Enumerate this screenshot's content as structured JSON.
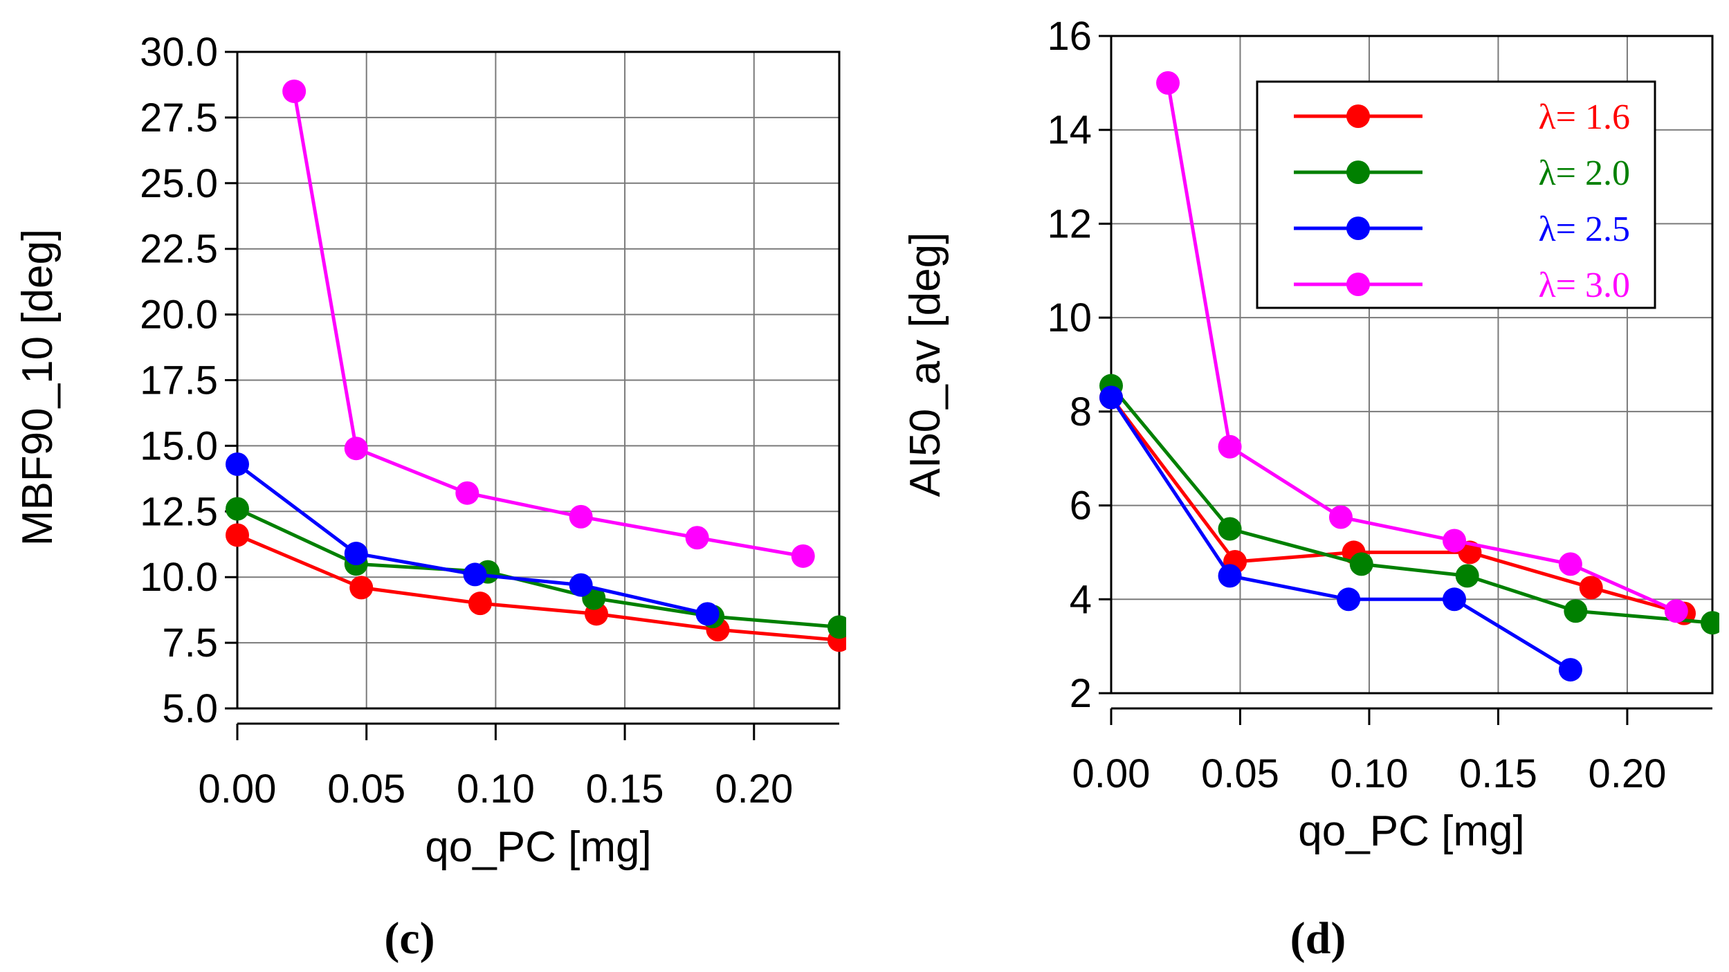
{
  "chart_data": [
    {
      "type": "line",
      "panel_label": "(c)",
      "xlabel": "qo_PC [mg]",
      "ylabel": "MBF90_10 [deg]",
      "xlim": [
        0.0,
        0.233
      ],
      "ylim": [
        5.0,
        30.0
      ],
      "xticks": [
        "0.00",
        "0.05",
        "0.10",
        "0.15",
        "0.20"
      ],
      "xtick_values": [
        0.0,
        0.05,
        0.1,
        0.15,
        0.2
      ],
      "yticks": [
        "5.0",
        "7.5",
        "10.0",
        "12.5",
        "15.0",
        "17.5",
        "20.0",
        "22.5",
        "25.0",
        "27.5",
        "30.0"
      ],
      "ytick_values": [
        5.0,
        7.5,
        10.0,
        12.5,
        15.0,
        17.5,
        20.0,
        22.5,
        25.0,
        27.5,
        30.0
      ],
      "grid": true,
      "series": [
        {
          "name": "λ = 1.6",
          "color": "#ff0000",
          "x": [
            0.0,
            0.048,
            0.094,
            0.139,
            0.186,
            0.233
          ],
          "y": [
            11.6,
            9.6,
            9.0,
            8.6,
            8.0,
            7.6
          ]
        },
        {
          "name": "λ = 2.0",
          "color": "#008000",
          "x": [
            0.0,
            0.046,
            0.097,
            0.138,
            0.184,
            0.233
          ],
          "y": [
            12.6,
            10.5,
            10.2,
            9.2,
            8.5,
            8.1
          ]
        },
        {
          "name": "λ = 2.5",
          "color": "#0000ff",
          "x": [
            0.0,
            0.046,
            0.092,
            0.133,
            0.182
          ],
          "y": [
            14.3,
            10.9,
            10.1,
            9.7,
            8.6
          ]
        },
        {
          "name": "λ = 3.0",
          "color": "#ff00ff",
          "x": [
            0.022,
            0.046,
            0.089,
            0.133,
            0.178,
            0.219
          ],
          "y": [
            28.5,
            14.9,
            13.2,
            12.3,
            11.5,
            10.8
          ]
        }
      ]
    },
    {
      "type": "line",
      "panel_label": "(d)",
      "xlabel": "qo_PC [mg]",
      "ylabel": "AI50_av [deg]",
      "xlim": [
        0.0,
        0.233
      ],
      "ylim": [
        2.0,
        16.0
      ],
      "xticks": [
        "0.00",
        "0.05",
        "0.10",
        "0.15",
        "0.20"
      ],
      "xtick_values": [
        0.0,
        0.05,
        0.1,
        0.15,
        0.2
      ],
      "yticks": [
        "2",
        "4",
        "6",
        "8",
        "10",
        "12",
        "14",
        "16"
      ],
      "ytick_values": [
        2,
        4,
        6,
        8,
        10,
        12,
        14,
        16
      ],
      "grid": true,
      "legend": {
        "position": "top-right",
        "entries": [
          "λ= 1.6",
          "λ= 2.0",
          "λ= 2.5",
          "λ= 3.0"
        ]
      },
      "series": [
        {
          "name": "λ= 1.6",
          "color": "#ff0000",
          "x": [
            0.0,
            0.048,
            0.094,
            0.139,
            0.186,
            0.222
          ],
          "y": [
            8.3,
            4.8,
            5.0,
            5.0,
            4.25,
            3.7
          ]
        },
        {
          "name": "λ= 2.0",
          "color": "#008000",
          "x": [
            0.0,
            0.046,
            0.097,
            0.138,
            0.18,
            0.233
          ],
          "y": [
            8.55,
            5.5,
            4.75,
            4.5,
            3.75,
            3.5
          ]
        },
        {
          "name": "λ= 2.5",
          "color": "#0000ff",
          "x": [
            0.0,
            0.046,
            0.092,
            0.133,
            0.178
          ],
          "y": [
            8.3,
            4.5,
            4.0,
            4.0,
            2.5
          ]
        },
        {
          "name": "λ= 3.0",
          "color": "#ff00ff",
          "x": [
            0.022,
            0.046,
            0.089,
            0.133,
            0.178,
            0.219
          ],
          "y": [
            15.0,
            7.25,
            5.75,
            5.25,
            4.75,
            3.75
          ]
        }
      ]
    }
  ]
}
